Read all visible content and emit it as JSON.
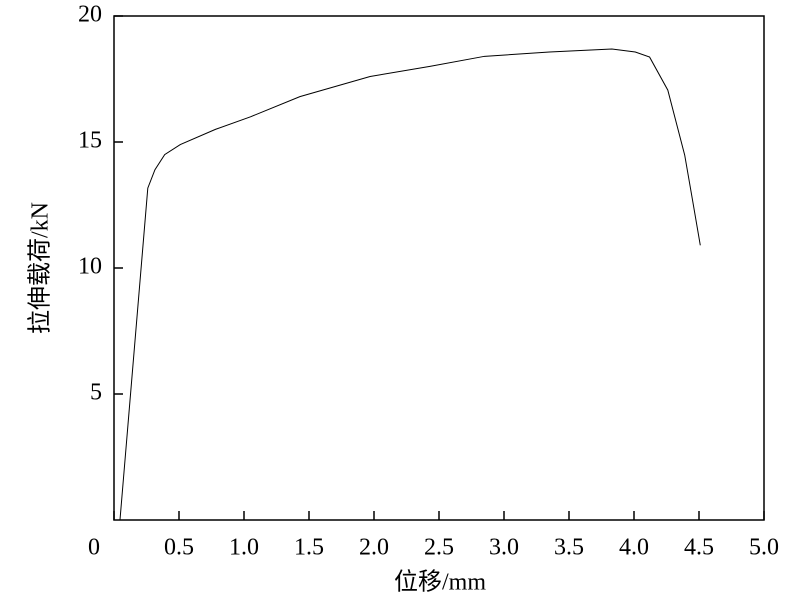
{
  "chart_data": {
    "type": "line",
    "x_label": "位移/mm",
    "y_label": "拉伸载荷/kN",
    "xlim": [
      0,
      5
    ],
    "ylim": [
      0,
      20
    ],
    "xticks": [
      0,
      0.5,
      {
        "value": 1,
        "label": "1.0"
      },
      1.5,
      {
        "value": 2,
        "label": "2.0"
      },
      2.5,
      {
        "value": 3,
        "label": "3.0"
      },
      3.5,
      {
        "value": 4,
        "label": "4.0"
      },
      4.5,
      {
        "value": 5,
        "label": "5.0"
      }
    ],
    "yticks": [
      5,
      10,
      15,
      20
    ],
    "color": "#000000",
    "x": [
      0.046,
      0.26,
      0.315,
      0.39,
      0.51,
      0.78,
      1.05,
      1.43,
      1.97,
      2.43,
      2.85,
      3.35,
      3.83,
      4.01,
      4.12,
      4.26,
      4.39,
      4.45,
      4.51
    ],
    "values": [
      0,
      13.17,
      13.9,
      14.5,
      14.9,
      15.5,
      16.0,
      16.8,
      17.6,
      18.0,
      18.4,
      18.57,
      18.69,
      18.57,
      18.37,
      17.06,
      14.48,
      12.7,
      10.9
    ]
  }
}
